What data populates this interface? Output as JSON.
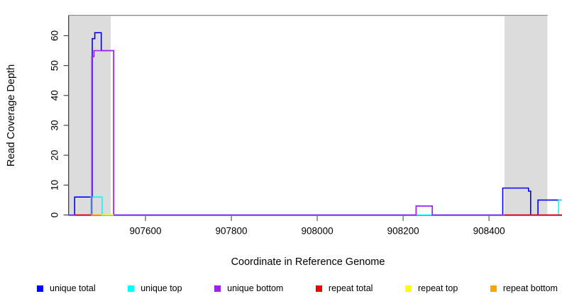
{
  "figure": {
    "kind": "read-coverage-plot"
  },
  "chart_data": {
    "type": "line",
    "subtype": "step",
    "title": "",
    "xlabel": "Coordinate in Reference Genome",
    "ylabel": "Read Coverage Depth",
    "xlim": [
      907421,
      908570
    ],
    "ylim": [
      0,
      66.8
    ],
    "x_ticks": [
      907600,
      907800,
      908000,
      908200,
      908400
    ],
    "y_ticks": [
      0,
      10,
      20,
      30,
      40,
      50,
      60
    ],
    "grid": false,
    "legend_position": "bottom",
    "background_color": "#ffffff",
    "masked_region_color": "#dcdcdc",
    "masked_regions": [
      {
        "x0": 907421,
        "x1": 907519
      },
      {
        "x0": 908436,
        "x1": 908536
      }
    ],
    "series": [
      {
        "name": "unique total",
        "color": "#0000ff",
        "segments": [
          {
            "steps": [
              [
                907421,
                0
              ],
              [
                907435,
                6
              ],
              [
                907476,
                59
              ],
              [
                907482,
                61
              ],
              [
                907497,
                55
              ],
              [
                907526,
                0
              ],
              [
                908230,
                3
              ],
              [
                908268,
                0
              ],
              [
                908432,
                9
              ],
              [
                908492,
                8
              ],
              [
                908497,
                0
              ],
              [
                908514,
                5
              ]
            ],
            "end": 908570
          }
        ]
      },
      {
        "name": "unique top",
        "color": "#00ffff",
        "segments": [
          {
            "steps": [
              [
                907421,
                0
              ],
              [
                907473,
                6
              ],
              [
                907499,
                0
              ],
              [
                908562,
                5
              ]
            ],
            "end": 908570
          }
        ]
      },
      {
        "name": "unique bottom",
        "color": "#a020f0",
        "segments": [
          {
            "steps": [
              [
                907421,
                0
              ],
              [
                907475,
                53
              ],
              [
                907480,
                55
              ],
              [
                907526,
                0
              ],
              [
                908230,
                3
              ],
              [
                908268,
                0
              ]
            ],
            "end": 908570
          }
        ]
      },
      {
        "name": "repeat total",
        "color": "#ee0000",
        "segments": [
          {
            "steps": [
              [
                907436,
                0
              ]
            ],
            "end": 907473
          },
          {
            "steps": [
              [
                908436,
                0
              ]
            ],
            "end": 908570
          }
        ]
      },
      {
        "name": "repeat top",
        "color": "#ffff00",
        "segments": [
          {
            "steps": [
              [
                907497,
                0
              ]
            ],
            "end": 907526
          }
        ]
      },
      {
        "name": "repeat bottom",
        "color": "#ffa500",
        "segments": [
          {
            "steps": [
              [
                907473,
                0
              ]
            ],
            "end": 907497
          }
        ]
      }
    ]
  },
  "legend": {
    "items": [
      {
        "label": "unique total",
        "color": "#0000ff"
      },
      {
        "label": "unique top",
        "color": "#00ffff"
      },
      {
        "label": "unique bottom",
        "color": "#a020f0"
      },
      {
        "label": "repeat total",
        "color": "#ee0000"
      },
      {
        "label": "repeat top",
        "color": "#ffff00"
      },
      {
        "label": "repeat bottom",
        "color": "#ffa500"
      }
    ]
  }
}
